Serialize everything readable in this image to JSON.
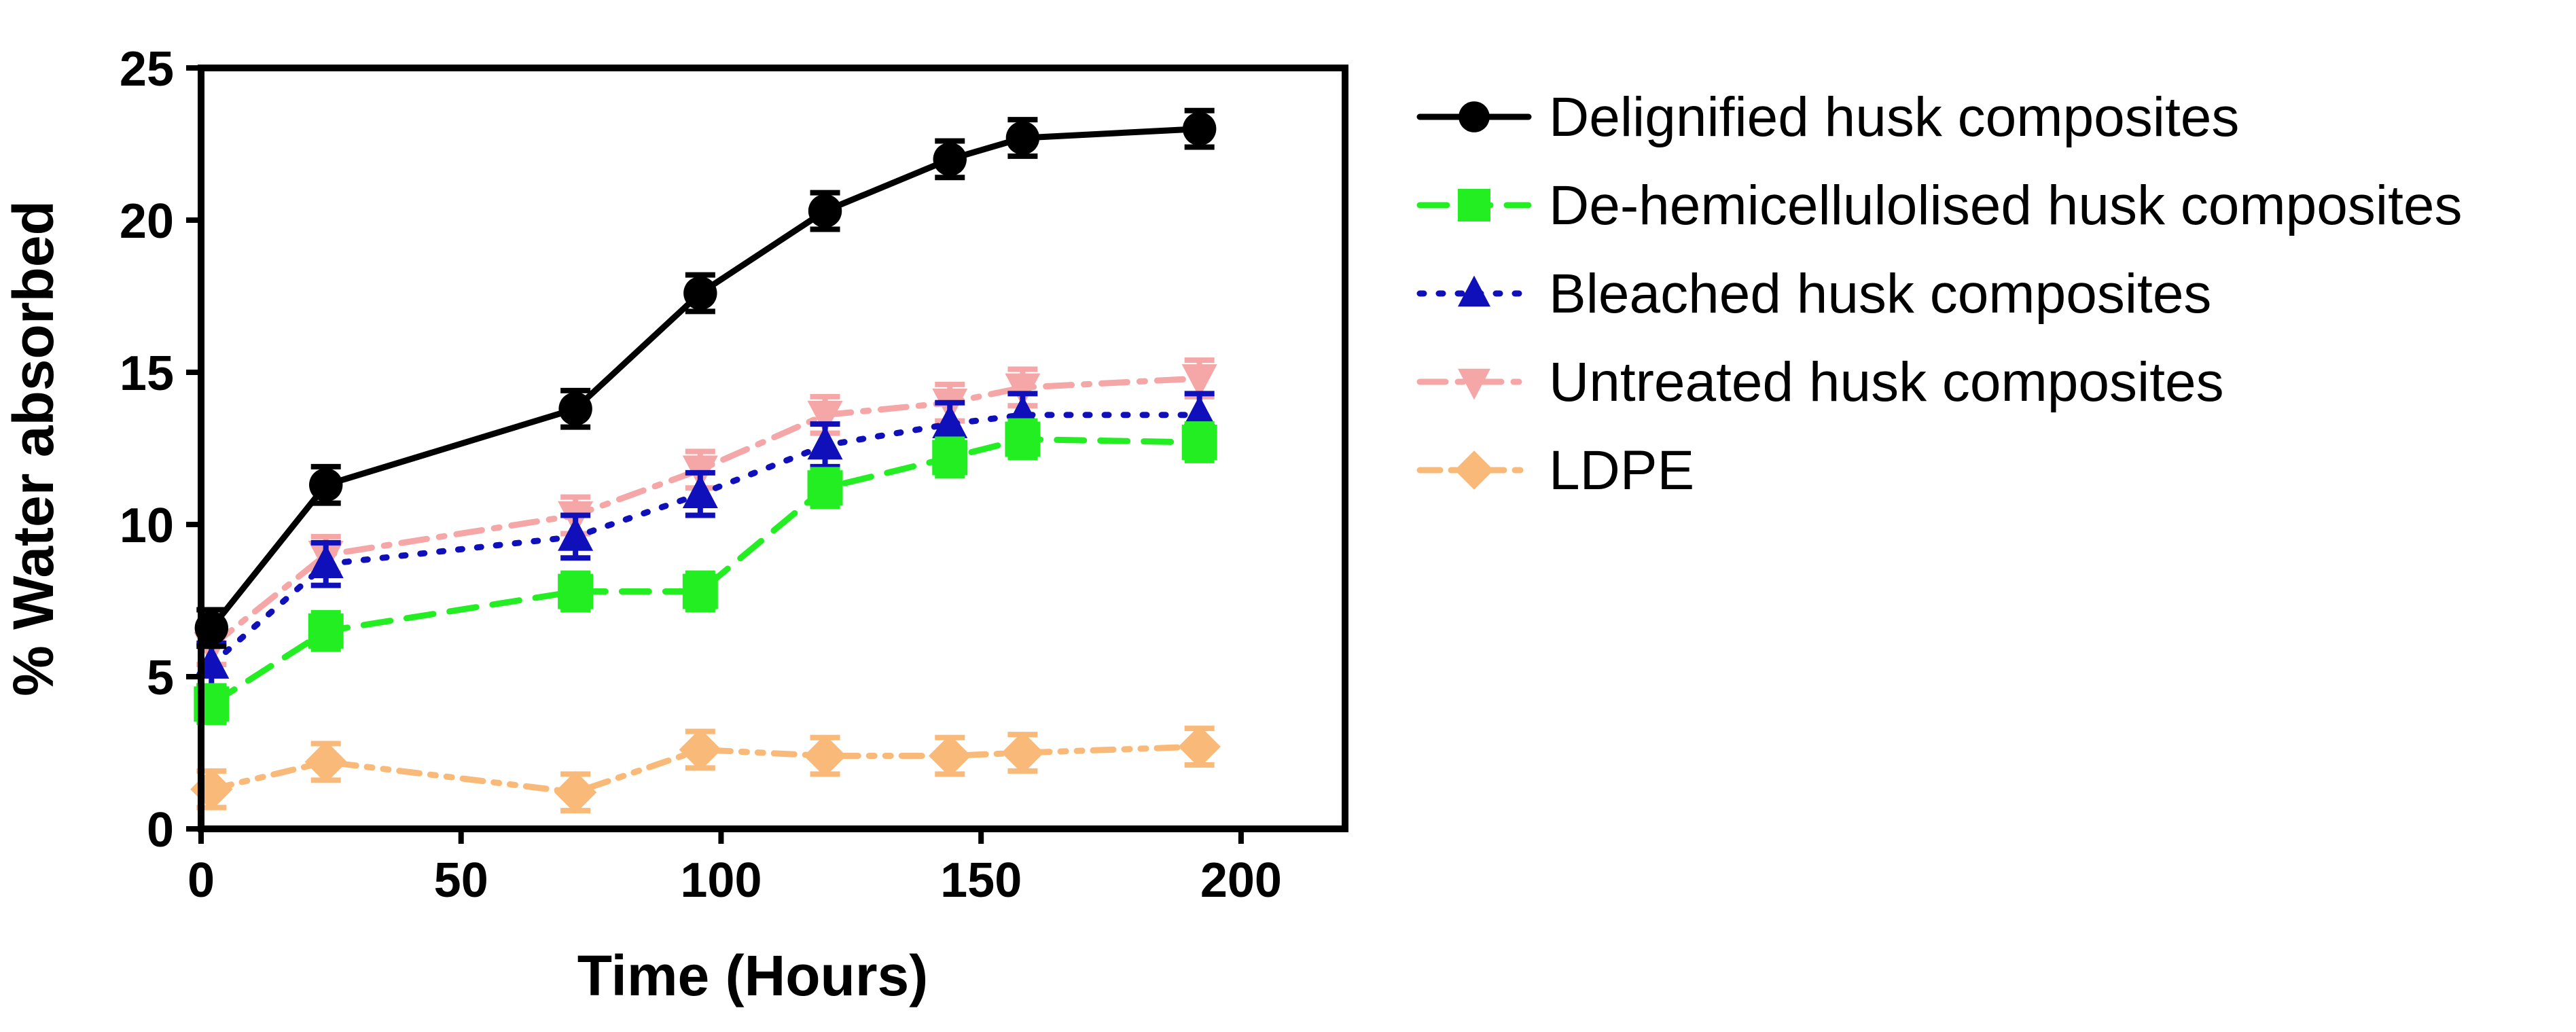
{
  "chart_data": {
    "type": "line",
    "title": "",
    "xlabel": "Time (Hours)",
    "ylabel": "% Water absorbed",
    "xlim": [
      0,
      220
    ],
    "ylim": [
      0,
      25
    ],
    "xticks": [
      0,
      50,
      100,
      150,
      200
    ],
    "yticks": [
      0,
      5,
      10,
      15,
      20,
      25
    ],
    "xtick_labels": [
      "0",
      "50",
      "100",
      "150",
      "200"
    ],
    "ytick_labels": [
      "0",
      "5",
      "10",
      "15",
      "20",
      "25"
    ],
    "grid": false,
    "legend_position": "right",
    "x": [
      2,
      24,
      72,
      96,
      120,
      144,
      158,
      192
    ],
    "series": [
      {
        "name": "Delignified husk composites",
        "color": "#000000",
        "marker": "circle",
        "dash": "solid",
        "values": [
          6.6,
          11.3,
          13.8,
          17.6,
          20.3,
          22.0,
          22.7,
          23.0
        ],
        "errors": [
          0.6,
          0.6,
          0.6,
          0.6,
          0.6,
          0.6,
          0.6,
          0.6
        ]
      },
      {
        "name": "De-hemicellulolised husk composites",
        "color": "#22ee22",
        "marker": "square",
        "dash": "dashed",
        "values": [
          4.1,
          6.5,
          7.8,
          7.8,
          11.2,
          12.2,
          12.8,
          12.7
        ],
        "errors": [
          0.6,
          0.6,
          0.6,
          0.6,
          0.6,
          0.6,
          0.6,
          0.6
        ]
      },
      {
        "name": "Bleached husk composites",
        "color": "#1010bb",
        "marker": "triangle-up",
        "dash": "dotted",
        "values": [
          5.4,
          8.7,
          9.6,
          11.0,
          12.6,
          13.3,
          13.6,
          13.6
        ],
        "errors": [
          0.7,
          0.7,
          0.7,
          0.7,
          0.7,
          0.7,
          0.7,
          0.7
        ]
      },
      {
        "name": "Untreated husk composites",
        "color": "#f5a6a6",
        "marker": "triangle-down",
        "dash": "dash-dot",
        "values": [
          6.0,
          9.0,
          10.3,
          11.8,
          13.6,
          14.0,
          14.5,
          14.8
        ],
        "errors": [
          0.6,
          0.6,
          0.6,
          0.6,
          0.6,
          0.6,
          0.6,
          0.6
        ]
      },
      {
        "name": "LDPE",
        "color": "#f9b978",
        "marker": "diamond",
        "dash": "dash-dot-dot",
        "values": [
          1.3,
          2.2,
          1.2,
          2.6,
          2.4,
          2.4,
          2.5,
          2.7
        ],
        "errors": [
          0.6,
          0.6,
          0.6,
          0.6,
          0.6,
          0.6,
          0.6,
          0.6
        ]
      }
    ]
  }
}
